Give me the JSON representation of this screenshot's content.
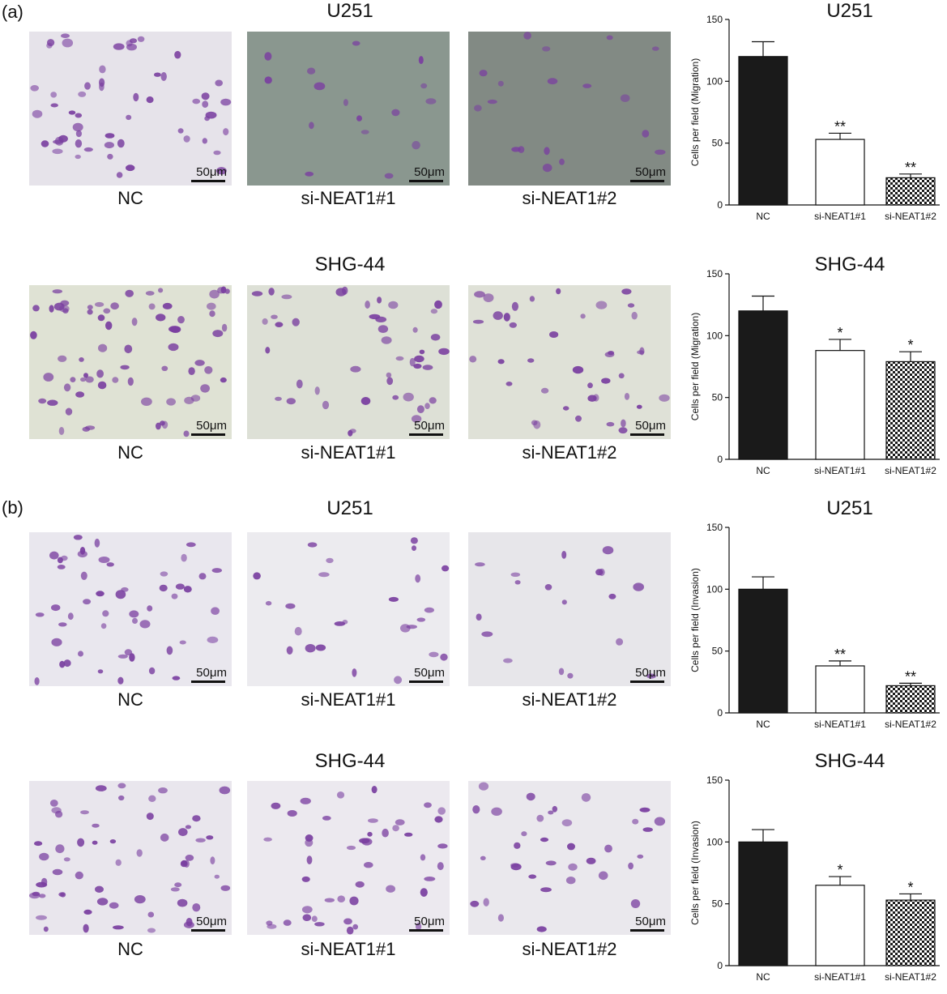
{
  "panels": [
    {
      "label": "(a)",
      "rows": [
        {
          "title": "U251",
          "images": [
            {
              "label": "NC",
              "scale": "50μm",
              "bg": "#e6e3ea",
              "density": 55
            },
            {
              "label": "si-NEAT1#1",
              "scale": "50μm",
              "bg": "#8a978f",
              "density": 16
            },
            {
              "label": "si-NEAT1#2",
              "scale": "50μm",
              "bg": "#828a84",
              "density": 18
            }
          ],
          "chart_title": "U251"
        },
        {
          "title": "SHG-44",
          "images": [
            {
              "label": "NC",
              "scale": "50μm",
              "bg": "#dfe2d4",
              "density": 70
            },
            {
              "label": "si-NEAT1#1",
              "scale": "50μm",
              "bg": "#dde0d6",
              "density": 45
            },
            {
              "label": "si-NEAT1#2",
              "scale": "50μm",
              "bg": "#dfe1d7",
              "density": 40
            }
          ],
          "chart_title": "SHG-44"
        }
      ]
    },
    {
      "label": "(b)",
      "rows": [
        {
          "title": "U251",
          "images": [
            {
              "label": "NC",
              "scale": "50μm",
              "bg": "#e9e7ee",
              "density": 50
            },
            {
              "label": "si-NEAT1#1",
              "scale": "50μm",
              "bg": "#ecebef",
              "density": 25
            },
            {
              "label": "si-NEAT1#2",
              "scale": "50μm",
              "bg": "#e7e6ea",
              "density": 18
            }
          ],
          "chart_title": "U251"
        },
        {
          "title": "SHG-44",
          "images": [
            {
              "label": "NC",
              "scale": "50μm",
              "bg": "#e9e6ed",
              "density": 60
            },
            {
              "label": "si-NEAT1#1",
              "scale": "50μm",
              "bg": "#ece9ef",
              "density": 45
            },
            {
              "label": "si-NEAT1#2",
              "scale": "50μm",
              "bg": "#eae8ed",
              "density": 35
            }
          ],
          "chart_title": "SHG-44"
        }
      ]
    }
  ],
  "chart_data": [
    {
      "type": "bar",
      "title": "U251",
      "ylabel": "Cells per field (Migration)",
      "categories": [
        "NC",
        "si-NEAT1#1",
        "si-NEAT1#2"
      ],
      "values": [
        120,
        53,
        22
      ],
      "errors": [
        12,
        5,
        3
      ],
      "significance": [
        "",
        "**",
        "**"
      ],
      "ylim": [
        0,
        150
      ],
      "yticks": [
        0,
        50,
        100,
        150
      ]
    },
    {
      "type": "bar",
      "title": "SHG-44",
      "ylabel": "Cells per field (Migration)",
      "categories": [
        "NC",
        "si-NEAT1#1",
        "si-NEAT1#2"
      ],
      "values": [
        120,
        88,
        79
      ],
      "errors": [
        12,
        9,
        8
      ],
      "significance": [
        "",
        "*",
        "*"
      ],
      "ylim": [
        0,
        150
      ],
      "yticks": [
        0,
        50,
        100,
        150
      ]
    },
    {
      "type": "bar",
      "title": "U251",
      "ylabel": "Cells per field (Invasion)",
      "categories": [
        "NC",
        "si-NEAT1#1",
        "si-NEAT1#2"
      ],
      "values": [
        100,
        38,
        22
      ],
      "errors": [
        10,
        4,
        2
      ],
      "significance": [
        "",
        "**",
        "**"
      ],
      "ylim": [
        0,
        150
      ],
      "yticks": [
        0,
        50,
        100,
        150
      ]
    },
    {
      "type": "bar",
      "title": "SHG-44",
      "ylabel": "Cells per field (Invasion)",
      "categories": [
        "NC",
        "si-NEAT1#1",
        "si-NEAT1#2"
      ],
      "values": [
        100,
        65,
        53
      ],
      "errors": [
        10,
        7,
        5
      ],
      "significance": [
        "",
        "*",
        "*"
      ],
      "ylim": [
        0,
        150
      ],
      "yticks": [
        0,
        50,
        100,
        150
      ]
    }
  ],
  "bar_fills": [
    "#1a1a1a",
    "#ffffff",
    "checker"
  ],
  "cell_color": "#7a3fa0"
}
